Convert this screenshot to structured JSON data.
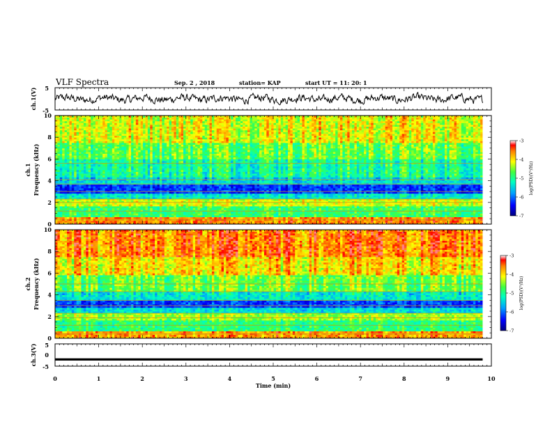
{
  "header": {
    "title": "VLF Spectra",
    "date": "Sep. 2 , 2018",
    "station": "station= KAP",
    "start": "start UT = 11: 20: 1"
  },
  "chart_data": [
    {
      "type": "line",
      "name": "ch1-waveform",
      "ylabel": "ch.1(V)",
      "ylim": [
        -5,
        5
      ],
      "yticks": [
        "5",
        "-5"
      ],
      "xlim": [
        0,
        10
      ],
      "approx_level": 0.0,
      "approx_amplitude": 2.0
    },
    {
      "type": "heatmap",
      "name": "ch1-spectrogram",
      "ylabel_top": "ch.1",
      "ylabel": "Frequency (kHz)",
      "ylim": [
        0,
        10
      ],
      "yticks": [
        "0",
        "2",
        "4",
        "6",
        "8",
        "10"
      ],
      "xlim": [
        0,
        9.8
      ],
      "colorbar": {
        "label": "log(PSD)(V²/Hz)",
        "range": [
          -7,
          -3
        ],
        "ticks": [
          "-3",
          "-4",
          "-5",
          "-6",
          "-7"
        ]
      },
      "bands_khz": [
        [
          0,
          0.6,
          -3.6
        ],
        [
          0.6,
          1.6,
          -4.8
        ],
        [
          1.6,
          2.4,
          -4.2
        ],
        [
          2.4,
          2.9,
          -5.3
        ],
        [
          2.9,
          3.6,
          -6.2
        ],
        [
          3.6,
          4.4,
          -5.4
        ],
        [
          4.4,
          6.0,
          -5.0
        ],
        [
          6.0,
          7.5,
          -4.6
        ],
        [
          7.5,
          10.0,
          -4.1
        ]
      ],
      "lines_khz": [
        0.4,
        1.2,
        2.0,
        2.3,
        3.0,
        3.7,
        4.1,
        5.6
      ]
    },
    {
      "type": "heatmap",
      "name": "ch2-spectrogram",
      "ylabel_top": "ch.2",
      "ylabel": "Frequency (kHz)",
      "ylim": [
        0,
        10
      ],
      "yticks": [
        "0",
        "2",
        "4",
        "6",
        "8",
        "10"
      ],
      "xlim": [
        0,
        9.8
      ],
      "colorbar": {
        "label": "log(PSD)(V²/Hz)",
        "range": [
          -7,
          -3
        ],
        "ticks": [
          "-3",
          "-4",
          "-5",
          "-6",
          "-7"
        ]
      },
      "bands_khz": [
        [
          0,
          0.6,
          -3.7
        ],
        [
          0.6,
          1.6,
          -4.9
        ],
        [
          1.6,
          2.4,
          -4.4
        ],
        [
          2.4,
          2.8,
          -5.4
        ],
        [
          2.8,
          3.5,
          -6.2
        ],
        [
          3.5,
          4.3,
          -5.3
        ],
        [
          4.3,
          5.8,
          -4.6
        ],
        [
          5.8,
          7.5,
          -4.0
        ],
        [
          7.5,
          10.0,
          -3.6
        ]
      ],
      "lines_khz": [
        0.4,
        1.2,
        1.9,
        2.3,
        3.0,
        3.5,
        4.3,
        5.0
      ]
    },
    {
      "type": "line",
      "name": "ch3-waveform",
      "ylabel": "ch.3(V)",
      "ylim": [
        -5,
        5
      ],
      "yticks": [
        "5",
        "0",
        "-5"
      ],
      "xlim": [
        0,
        10
      ],
      "approx_level": -2.0,
      "xlabel": "Time (min)",
      "xticks": [
        "0",
        "1",
        "2",
        "3",
        "4",
        "5",
        "6",
        "7",
        "8",
        "9",
        "10"
      ]
    }
  ]
}
